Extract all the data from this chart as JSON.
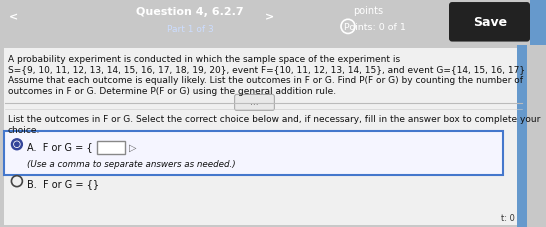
{
  "header_bg": "#2a4a8a",
  "body_bg": "#c8c8c8",
  "white_body_bg": "#e8e8e8",
  "header_text_color": "#ffffff",
  "body_text_color": "#111111",
  "question_title": "Question 4, 6.2.7",
  "part_label": "Part 1 of 3",
  "points_label": "points",
  "points_value": "Points: 0 of 1",
  "save_btn": "Save",
  "body_line1": "A probability experiment is conducted in which the sample space of the experiment is",
  "body_line2": "S={9, 10, 11, 12, 13, 14, 15, 16, 17, 18, 19, 20}, event F={10, 11, 12, 13, 14, 15}, and event G={14, 15, 16, 17}",
  "body_line3": "Assume that each outcome is equally likely. List the outcomes in F or G. Find P(F or G) by counting the number of",
  "body_line4": "outcomes in F or G. Determine P(F or G) using the general addition rule.",
  "separator_dots": "...",
  "question_text1": "List the outcomes in F or G. Select the correct choice below and, if necessary, fill in the answer box to complete your",
  "question_text2": "choice.",
  "choice_a_text": "A.  F or G = {",
  "choice_a_hint": "(Use a comma to separate answers as needed.)",
  "choice_b_text": "B.  F or G = {}",
  "right_label": "t: 0",
  "figsize": [
    5.46,
    2.28
  ],
  "dpi": 100
}
